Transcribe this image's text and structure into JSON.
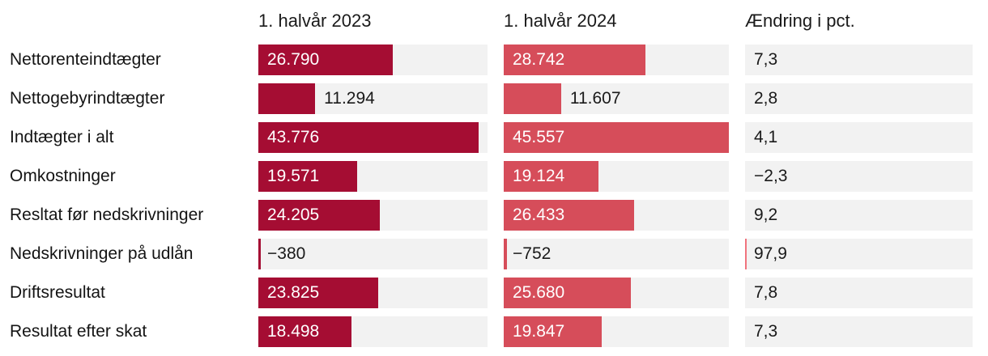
{
  "colors": {
    "bar_2023": "#A50D33",
    "bar_2024": "#D64D5A",
    "track": "#F2F2F2",
    "pct_sliver": "#F0737D",
    "text": "#1A1A1A"
  },
  "chart_data": {
    "type": "bar",
    "orientation": "horizontal",
    "title": "",
    "xlim": [
      0,
      45557
    ],
    "grid": false,
    "legend_position": "none",
    "categories": [
      "Nettorenteindtægter",
      "Nettogebyrindtægter",
      "Indtægter i alt",
      "Omkostninger",
      "Resltat før nedskrivninger",
      "Nedskrivninger på udlån",
      "Driftsresultat",
      "Resultat efter skat"
    ],
    "series": [
      {
        "name": "1. halvår 2023",
        "values": [
          26790,
          11294,
          43776,
          19571,
          24205,
          -380,
          23825,
          18498
        ]
      },
      {
        "name": "1. halvår 2024",
        "values": [
          28742,
          11607,
          45557,
          19124,
          26433,
          -752,
          25680,
          19847
        ]
      },
      {
        "name": "Ændring i pct.",
        "values": [
          7.3,
          2.8,
          4.1,
          -2.3,
          9.2,
          97.9,
          7.8,
          7.3
        ]
      }
    ]
  },
  "rows": [
    {
      "label": "Nettorenteindtægter",
      "v2023": "26.790",
      "v2024": "28.742",
      "change": "7,3"
    },
    {
      "label": "Nettogebyrindtægter",
      "v2023": "11.294",
      "v2024": "11.607",
      "change": "2,8"
    },
    {
      "label": "Indtægter i alt",
      "v2023": "43.776",
      "v2024": "45.557",
      "change": "4,1"
    },
    {
      "label": "Omkostninger",
      "v2023": "19.571",
      "v2024": "19.124",
      "change": "−2,3"
    },
    {
      "label": "Resltat før nedskrivninger",
      "v2023": "24.205",
      "v2024": "26.433",
      "change": "9,2"
    },
    {
      "label": "Nedskrivninger på udlån",
      "v2023": "−380",
      "v2024": "−752",
      "change": "97,9"
    },
    {
      "label": "Driftsresultat",
      "v2023": "23.825",
      "v2024": "25.680",
      "change": "7,8"
    },
    {
      "label": "Resultat efter skat",
      "v2023": "18.498",
      "v2024": "19.847",
      "change": "7,3"
    }
  ]
}
